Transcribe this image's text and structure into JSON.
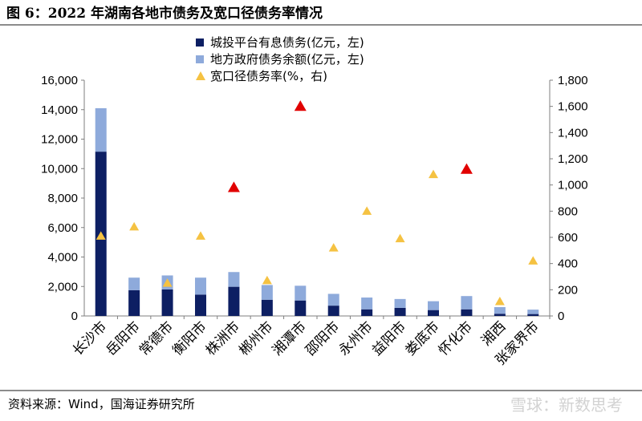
{
  "figure_title": "图 6：2022 年湖南各地市债务及宽口径债务率情况",
  "source": "资料来源：Wind，国海证券研究所",
  "watermark": "雪球：新数思考",
  "colors": {
    "urban": "#0d1f63",
    "gov": "#8eaadb",
    "rate_normal": "#f5c242",
    "rate_high": "#e10000"
  },
  "chart_data": {
    "type": "bar",
    "stacked": true,
    "categories": [
      "长沙市",
      "岳阳市",
      "常德市",
      "衡阳市",
      "株洲市",
      "郴州市",
      "湘潭市",
      "邵阳市",
      "永州市",
      "益阳市",
      "娄底市",
      "怀化市",
      "湘西",
      "张家界市"
    ],
    "series": [
      {
        "name": "城投平台有息债务(亿元，左)",
        "axis": "left",
        "color": "#0d1f63",
        "values": [
          11150,
          1750,
          1800,
          1450,
          1980,
          1100,
          1050,
          700,
          450,
          550,
          400,
          450,
          150,
          130
        ]
      },
      {
        "name": "地方政府债务余额(亿元，左)",
        "axis": "left",
        "color": "#8eaadb",
        "values": [
          2950,
          850,
          950,
          1150,
          1000,
          1000,
          1000,
          800,
          800,
          600,
          600,
          900,
          450,
          300
        ]
      },
      {
        "name": "宽口径债务率(%，右)",
        "axis": "right",
        "marker": "triangle",
        "values": [
          610,
          680,
          250,
          610,
          980,
          270,
          1600,
          520,
          800,
          590,
          1080,
          1120,
          110,
          420
        ],
        "highlight": [
          false,
          false,
          false,
          false,
          true,
          false,
          true,
          false,
          false,
          false,
          false,
          true,
          false,
          false
        ]
      }
    ],
    "left_axis": {
      "ylim": [
        0,
        16000
      ],
      "ticks": [
        "0",
        "2,000",
        "4,000",
        "6,000",
        "8,000",
        "10,000",
        "12,000",
        "14,000",
        "16,000"
      ]
    },
    "right_axis": {
      "ylim": [
        0,
        1800
      ],
      "ticks": [
        "0",
        "200",
        "400",
        "600",
        "800",
        "1,000",
        "1,200",
        "1,400",
        "1,600",
        "1,800"
      ]
    },
    "legend_position": "top-center",
    "grid": false
  }
}
